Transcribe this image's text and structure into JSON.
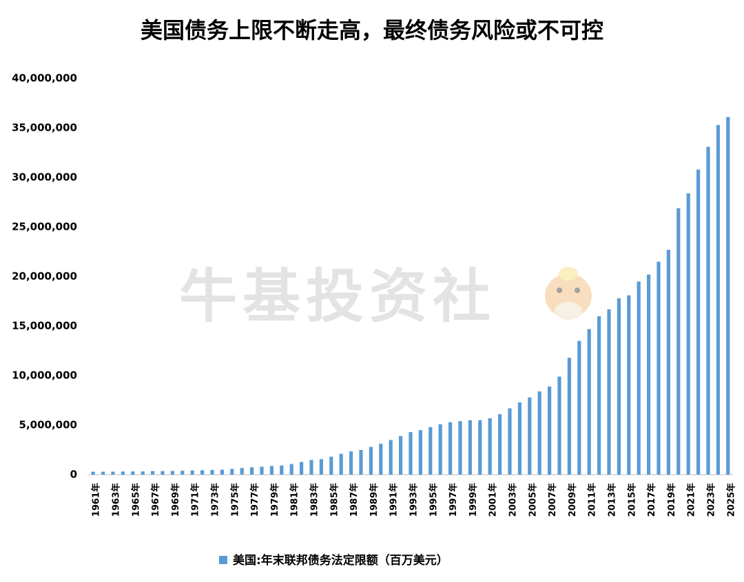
{
  "chart_data": {
    "type": "bar",
    "title": "美国债务上限不断走高，最终债务风险或不可控",
    "watermark": "牛基投资社",
    "categories": [
      "1961年",
      null,
      "1963年",
      null,
      "1965年",
      null,
      "1967年",
      null,
      "1969年",
      null,
      "1971年",
      null,
      "1973年",
      null,
      "1975年",
      null,
      "1977年",
      null,
      "1979年",
      null,
      "1981年",
      null,
      "1983年",
      null,
      "1985年",
      null,
      "1987年",
      null,
      "1989年",
      null,
      "1991年",
      null,
      "1993年",
      null,
      "1995年",
      null,
      "1997年",
      null,
      "1999年",
      null,
      "2001年",
      null,
      "2003年",
      null,
      "2005年",
      null,
      "2007年",
      null,
      "2009年",
      null,
      "2011年",
      null,
      "2013年",
      null,
      "2015年",
      null,
      "2017年",
      null,
      "2019年",
      null,
      "2021年",
      null,
      "2023年",
      null,
      "2025年"
    ],
    "series": [
      {
        "name": "美国:年末联邦债务法定限额（百万美元）",
        "color": "#5b9bd5",
        "values": [
          300000,
          300000,
          310000,
          320000,
          330000,
          330000,
          360000,
          360000,
          380000,
          400000,
          430000,
          450000,
          480000,
          500000,
          580000,
          680000,
          750000,
          800000,
          880000,
          930000,
          1080000,
          1290000,
          1490000,
          1570000,
          1820000,
          2110000,
          2350000,
          2500000,
          2800000,
          3120000,
          3500000,
          3900000,
          4300000,
          4500000,
          4800000,
          5100000,
          5300000,
          5400000,
          5500000,
          5500000,
          5700000,
          6100000,
          6700000,
          7300000,
          7800000,
          8400000,
          8900000,
          9900000,
          11800000,
          13500000,
          14700000,
          16000000,
          16700000,
          17800000,
          18100000,
          19500000,
          20200000,
          21500000,
          22700000,
          26900000,
          28400000,
          30800000,
          33100000,
          35300000,
          36100000
        ]
      }
    ],
    "ylim": [
      0,
      40000000
    ],
    "yticks": [
      0,
      {
        "value": 5000000,
        "label": "5,000,000"
      },
      {
        "value": 10000000,
        "label": "10,000,000"
      },
      {
        "value": 15000000,
        "label": "15,000,000"
      },
      {
        "value": 20000000,
        "label": "20,000,000"
      },
      {
        "value": 25000000,
        "label": "25,000,000"
      },
      {
        "value": 30000000,
        "label": "30,000,000"
      },
      {
        "value": 35000000,
        "label": "35,000,000"
      },
      {
        "value": 40000000,
        "label": "40,000,000"
      }
    ],
    "grid": false,
    "legend": "bottom"
  }
}
